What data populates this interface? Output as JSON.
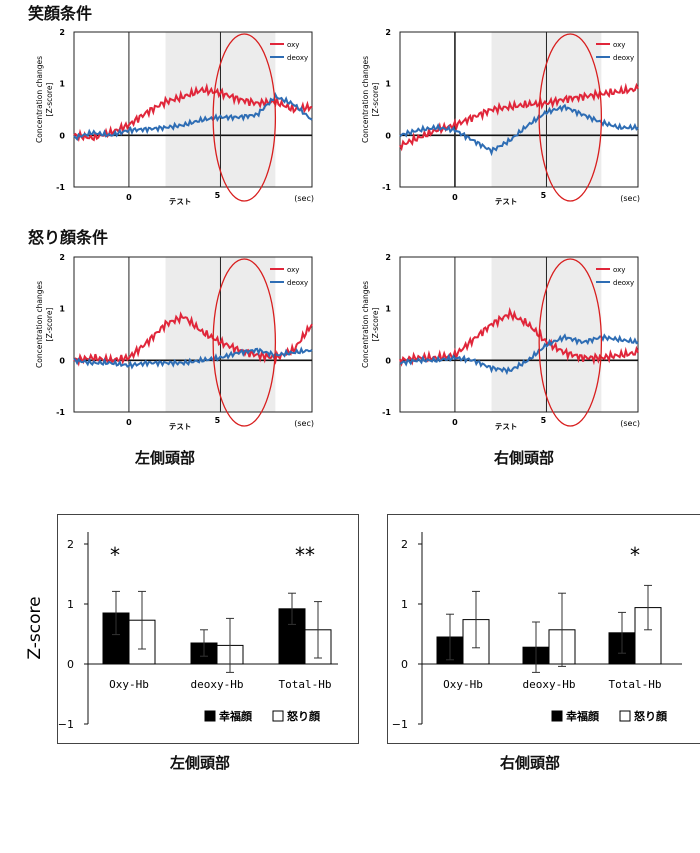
{
  "headings": {
    "smile": "笑顔条件",
    "anger": "怒り顔条件"
  },
  "region_labels": {
    "left": "左側頭部",
    "right": "右側頭部"
  },
  "colors": {
    "oxy": "#e0263a",
    "deoxy": "#2e6db4",
    "test_shade": "#ececec",
    "highlight": "#d81e1e"
  },
  "chart_data": [
    {
      "id": "smile-left",
      "type": "line",
      "condition": "笑顔条件",
      "region": "左側頭部",
      "ylabel": "Concentration changes\n[Z-score]",
      "xlabel": "(sec)",
      "shaded_label": "テスト",
      "xlim": [
        -3,
        10
      ],
      "ylim": [
        -1,
        2
      ],
      "x_ticks": [
        "0",
        "5"
      ],
      "y_ticks": [
        "2",
        "1",
        "0",
        "-1"
      ],
      "test_period": [
        2,
        8
      ],
      "highlight_period": [
        4.6,
        8
      ],
      "series": [
        {
          "name": "oxy",
          "x": [
            -3,
            -2,
            -1,
            0,
            1,
            2,
            3,
            4,
            5,
            6,
            7,
            8,
            9,
            10
          ],
          "y": [
            0.0,
            -0.05,
            0.05,
            0.2,
            0.45,
            0.65,
            0.75,
            0.88,
            0.82,
            0.7,
            0.62,
            0.65,
            0.5,
            0.55
          ]
        },
        {
          "name": "deoxy",
          "x": [
            -3,
            -2,
            -1,
            0,
            1,
            2,
            3,
            4,
            5,
            6,
            7,
            8,
            9,
            10
          ],
          "y": [
            -0.05,
            0.05,
            0.0,
            0.1,
            0.12,
            0.15,
            0.2,
            0.3,
            0.35,
            0.35,
            0.4,
            0.75,
            0.6,
            0.3
          ]
        }
      ]
    },
    {
      "id": "smile-right",
      "type": "line",
      "condition": "笑顔条件",
      "region": "右側頭部",
      "ylabel": "Concentration changes\n[Z-score]",
      "xlabel": "(sec)",
      "shaded_label": "テスト",
      "xlim": [
        -3,
        10
      ],
      "ylim": [
        -1,
        2
      ],
      "x_ticks": [
        "0",
        "5"
      ],
      "y_ticks": [
        "2",
        "1",
        "0",
        "-1"
      ],
      "test_period": [
        2,
        8
      ],
      "highlight_period": [
        4.6,
        8
      ],
      "series": [
        {
          "name": "oxy",
          "x": [
            -3,
            -2,
            -1,
            0,
            1,
            2,
            3,
            4,
            5,
            6,
            7,
            8,
            9,
            10
          ],
          "y": [
            -0.2,
            -0.05,
            0.1,
            0.2,
            0.35,
            0.5,
            0.55,
            0.6,
            0.62,
            0.7,
            0.75,
            0.8,
            0.85,
            0.9
          ]
        },
        {
          "name": "deoxy",
          "x": [
            -3,
            -2,
            -1,
            0,
            1,
            2,
            3,
            4,
            5,
            6,
            7,
            8,
            9,
            10
          ],
          "y": [
            0.0,
            0.1,
            0.15,
            0.1,
            -0.1,
            -0.3,
            -0.1,
            0.2,
            0.45,
            0.55,
            0.4,
            0.25,
            0.15,
            0.15
          ]
        }
      ]
    },
    {
      "id": "anger-left",
      "type": "line",
      "condition": "怒り顔条件",
      "region": "左側頭部",
      "ylabel": "Concentration changes\n[Z-score]",
      "xlabel": "(sec)",
      "shaded_label": "テスト",
      "xlim": [
        -3,
        10
      ],
      "ylim": [
        -1,
        2
      ],
      "x_ticks": [
        "0",
        "5"
      ],
      "y_ticks": [
        "2",
        "1",
        "0",
        "-1"
      ],
      "test_period": [
        2,
        8
      ],
      "highlight_period": [
        4.6,
        8
      ],
      "series": [
        {
          "name": "oxy",
          "x": [
            -3,
            -2,
            -1,
            0,
            1,
            2,
            3,
            4,
            5,
            6,
            7,
            8,
            9,
            10
          ],
          "y": [
            0.0,
            0.05,
            0.0,
            0.05,
            0.35,
            0.7,
            0.85,
            0.55,
            0.35,
            0.2,
            0.1,
            0.05,
            0.2,
            0.7
          ]
        },
        {
          "name": "deoxy",
          "x": [
            -3,
            -2,
            -1,
            0,
            1,
            2,
            3,
            4,
            5,
            6,
            7,
            8,
            9,
            10
          ],
          "y": [
            0.0,
            -0.05,
            -0.05,
            -0.1,
            -0.05,
            -0.05,
            -0.05,
            0.0,
            0.05,
            0.15,
            0.2,
            0.1,
            0.15,
            0.2
          ]
        }
      ]
    },
    {
      "id": "anger-right",
      "type": "line",
      "condition": "怒り顔条件",
      "region": "右側頭部",
      "ylabel": "Concentration changes\n[Z-score]",
      "xlabel": "(sec)",
      "shaded_label": "テスト",
      "xlim": [
        -3,
        10
      ],
      "ylim": [
        -1,
        2
      ],
      "x_ticks": [
        "0",
        "5"
      ],
      "y_ticks": [
        "2",
        "1",
        "0",
        "-1"
      ],
      "test_period": [
        2,
        8
      ],
      "highlight_period": [
        4.6,
        8
      ],
      "series": [
        {
          "name": "oxy",
          "x": [
            -3,
            -2,
            -1,
            0,
            1,
            2,
            3,
            4,
            5,
            6,
            7,
            8,
            9,
            10
          ],
          "y": [
            0.0,
            0.05,
            0.05,
            0.1,
            0.4,
            0.7,
            0.9,
            0.7,
            0.35,
            0.15,
            0.05,
            0.05,
            0.1,
            0.15
          ]
        },
        {
          "name": "deoxy",
          "x": [
            -3,
            -2,
            -1,
            0,
            1,
            2,
            3,
            4,
            5,
            6,
            7,
            8,
            9,
            10
          ],
          "y": [
            -0.05,
            0.0,
            0.0,
            0.05,
            0.0,
            -0.15,
            -0.2,
            0.0,
            0.3,
            0.45,
            0.35,
            0.45,
            0.4,
            0.35
          ]
        }
      ]
    },
    {
      "id": "bar-left",
      "type": "bar",
      "region": "左側頭部",
      "ylabel": "Z-score",
      "ylim": [
        -1,
        2.2
      ],
      "y_ticks": [
        "2",
        "1",
        "0",
        "−1"
      ],
      "categories": [
        "Oxy-Hb",
        "deoxy-Hb",
        "Total-Hb"
      ],
      "series": [
        {
          "name": "幸福顔",
          "values": [
            0.85,
            0.35,
            0.92
          ],
          "errors": [
            0.36,
            0.22,
            0.26
          ]
        },
        {
          "name": "怒り顔",
          "values": [
            0.73,
            0.31,
            0.57
          ],
          "errors": [
            0.48,
            0.45,
            0.47
          ]
        }
      ],
      "significance": [
        "*",
        "",
        "**"
      ]
    },
    {
      "id": "bar-right",
      "type": "bar",
      "region": "右側頭部",
      "ylabel": "",
      "ylim": [
        -1,
        2.2
      ],
      "y_ticks": [
        "2",
        "1",
        "0",
        "−1"
      ],
      "categories": [
        "Oxy-Hb",
        "deoxy-Hb",
        "Total-Hb"
      ],
      "series": [
        {
          "name": "幸福顔",
          "values": [
            0.45,
            0.28,
            0.52
          ],
          "errors": [
            0.38,
            0.42,
            0.34
          ]
        },
        {
          "name": "怒り顔",
          "values": [
            0.74,
            0.57,
            0.94
          ],
          "errors": [
            0.47,
            0.61,
            0.37
          ]
        }
      ],
      "significance": [
        "",
        "",
        "*"
      ]
    }
  ]
}
